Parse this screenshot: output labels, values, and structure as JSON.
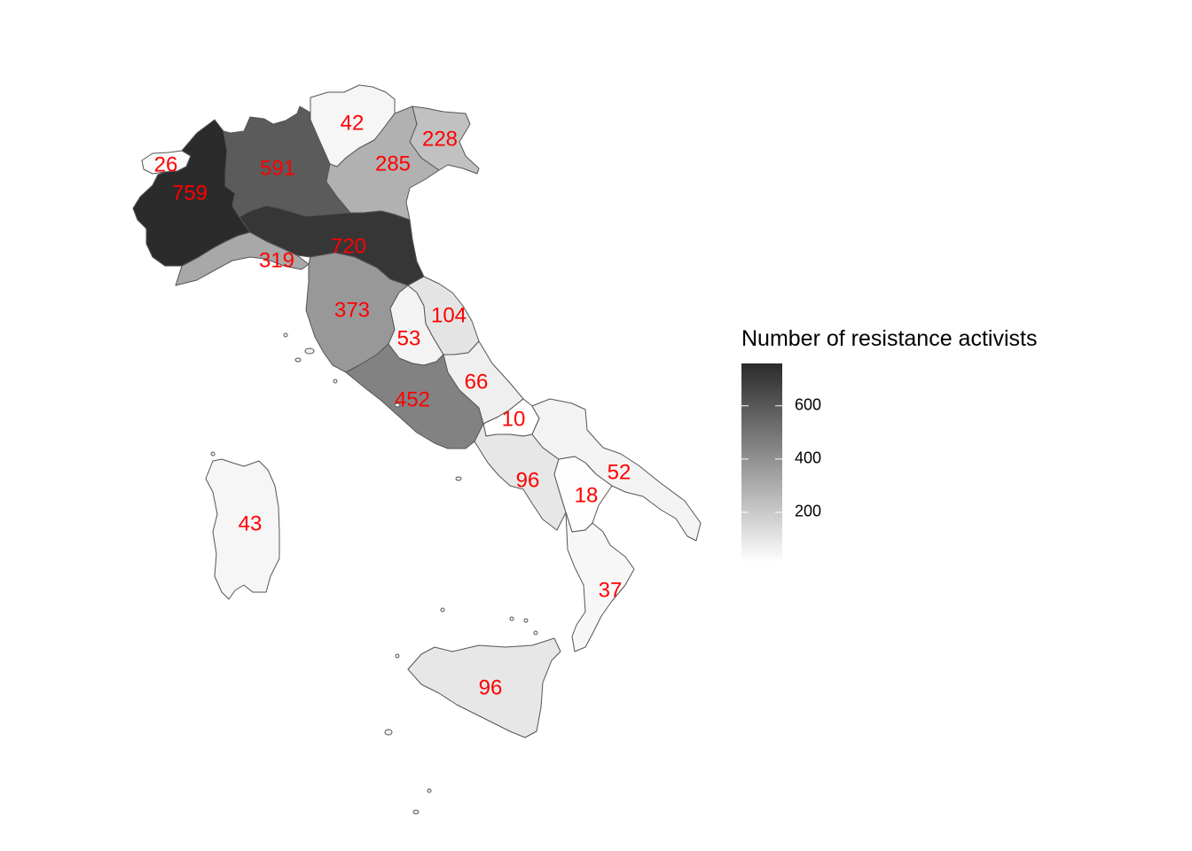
{
  "legend": {
    "title": "Number of resistance activists",
    "ticks": [
      200,
      400,
      600
    ],
    "range": [
      10,
      759
    ],
    "color_low": "#ffffff",
    "color_high": "#2b2b2b"
  },
  "label_color": "#ff0000",
  "border_color": "#555555",
  "regions": [
    {
      "id": "valle-daosta",
      "value": 26,
      "label": "26"
    },
    {
      "id": "piemonte",
      "value": 759,
      "label": "759"
    },
    {
      "id": "lombardia",
      "value": 591,
      "label": "591"
    },
    {
      "id": "trentino-alto-adige",
      "value": 42,
      "label": "42"
    },
    {
      "id": "veneto",
      "value": 285,
      "label": "285"
    },
    {
      "id": "friuli-venezia-giulia",
      "value": 228,
      "label": "228"
    },
    {
      "id": "liguria",
      "value": 319,
      "label": "319"
    },
    {
      "id": "emilia-romagna",
      "value": 720,
      "label": "720"
    },
    {
      "id": "toscana",
      "value": 373,
      "label": "373"
    },
    {
      "id": "umbria",
      "value": 53,
      "label": "53"
    },
    {
      "id": "marche",
      "value": 104,
      "label": "104"
    },
    {
      "id": "lazio",
      "value": 452,
      "label": "452"
    },
    {
      "id": "abruzzo",
      "value": 66,
      "label": "66"
    },
    {
      "id": "molise",
      "value": 10,
      "label": "10"
    },
    {
      "id": "campania",
      "value": 96,
      "label": "96"
    },
    {
      "id": "puglia",
      "value": 52,
      "label": "52"
    },
    {
      "id": "basilicata",
      "value": 18,
      "label": "18"
    },
    {
      "id": "calabria",
      "value": 37,
      "label": "37"
    },
    {
      "id": "sicilia",
      "value": 96,
      "label": "96"
    },
    {
      "id": "sardegna",
      "value": 43,
      "label": "43"
    }
  ]
}
